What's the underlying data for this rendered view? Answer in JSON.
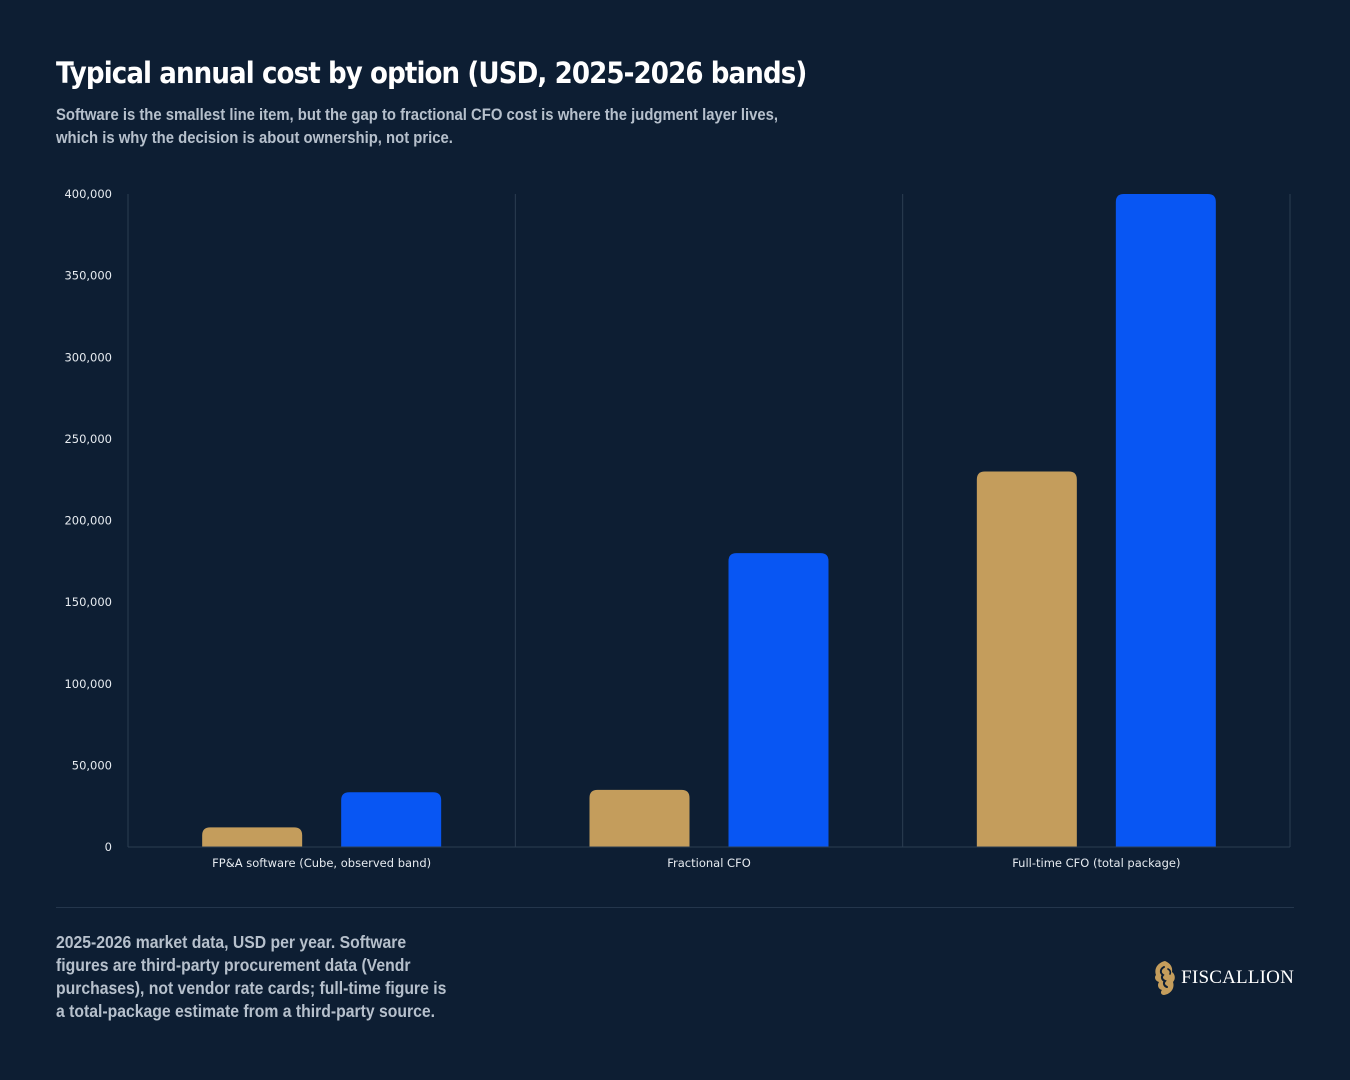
{
  "header": {
    "title": "Typical annual cost by option (USD, 2025-2026 bands)",
    "subtitle": "Software is the smallest line item, but the gap to fractional CFO cost is where the judgment layer lives, which is why the decision is about ownership, not price."
  },
  "chart_data": {
    "type": "bar",
    "title": "",
    "xlabel": "",
    "ylabel": "",
    "categories": [
      "FP&A software (Cube, observed band)",
      "Fractional CFO",
      "Full-time CFO (total package)"
    ],
    "series": [
      {
        "values": [
          12000,
          35000,
          230000
        ],
        "color": "#c49d5c"
      },
      {
        "values": [
          33500,
          180000,
          400000
        ],
        "color": "#0856f3"
      }
    ],
    "ylim": [
      0,
      400000
    ],
    "yticks": [
      0,
      50000,
      100000,
      150000,
      200000,
      250000,
      300000,
      350000,
      400000
    ],
    "ytick_labels": [
      "0",
      "50,000",
      "100,000",
      "150,000",
      "200,000",
      "250,000",
      "300,000",
      "350,000",
      "400,000"
    ],
    "grid": false,
    "legend": "none"
  },
  "footer": {
    "note": "2025-2026 market data, USD per year. Software figures are third-party procurement data (Vendr purchases), not vendor rate cards; full-time figure is a total-package estimate from a third-party source.",
    "brand": "FISCALLION",
    "brand_icon": "lion-head-logo",
    "brand_color": "#c49d5c"
  },
  "colors": {
    "background": "#0d1e33",
    "axis_line": "#2b3d52",
    "tick_text": "#e6ebf0",
    "muted_text": "#b6c0cc"
  }
}
